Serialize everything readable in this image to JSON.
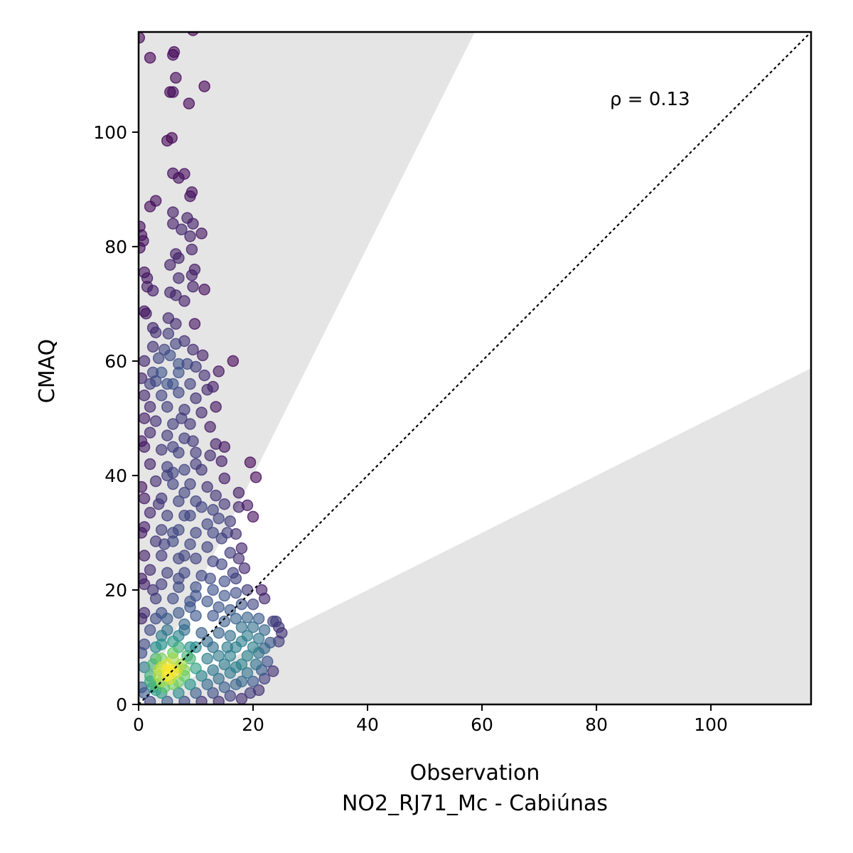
{
  "chart_data": {
    "type": "scatter",
    "title": "",
    "xlabel": "Observation",
    "xlabel_sub": "NO2_RJ71_Mc - Cabiúnas",
    "ylabel": "CMAQ",
    "xlim": [
      0,
      117.5
    ],
    "ylim": [
      0,
      117.5
    ],
    "xticks": [
      0,
      20,
      40,
      60,
      80,
      100
    ],
    "yticks": [
      0,
      20,
      40,
      60,
      80,
      100
    ],
    "grid": false,
    "legend": "none",
    "annotation": "ρ = 0.13",
    "reference_line": {
      "label": "1:1",
      "style": "dotted",
      "color": "#000000"
    },
    "shaded_band": {
      "slopes_outside": [
        0.5,
        2.0
      ],
      "color": "#e5e5e5"
    },
    "colormap": "viridis",
    "colors": {
      "low_density": "#440154",
      "mid_density": "#21918c",
      "high_density": "#fde725",
      "band": "#e5e5e5"
    },
    "points": [
      [
        0.1,
        116.5
      ],
      [
        9.5,
        117.8
      ],
      [
        2,
        113
      ],
      [
        6.2,
        114
      ],
      [
        6,
        113.5
      ],
      [
        6.5,
        109.5
      ],
      [
        11.5,
        108
      ],
      [
        5.5,
        107
      ],
      [
        6,
        107
      ],
      [
        8.8,
        105
      ],
      [
        5,
        98.5
      ],
      [
        5.8,
        99
      ],
      [
        6,
        92.8
      ],
      [
        8,
        92.7
      ],
      [
        7,
        92
      ],
      [
        9.3,
        89.5
      ],
      [
        9,
        88.8
      ],
      [
        2,
        87
      ],
      [
        3,
        88
      ],
      [
        6,
        86
      ],
      [
        8.5,
        85
      ],
      [
        9.5,
        84
      ],
      [
        6,
        84
      ],
      [
        7.5,
        83
      ],
      [
        11,
        82.3
      ],
      [
        9,
        81.8
      ],
      [
        0.2,
        83.5
      ],
      [
        0.5,
        82
      ],
      [
        0.8,
        81
      ],
      [
        0.2,
        79.8
      ],
      [
        6.5,
        78.7
      ],
      [
        9.3,
        79.5
      ],
      [
        7,
        78
      ],
      [
        5.5,
        76.8
      ],
      [
        9.8,
        76
      ],
      [
        9.3,
        75
      ],
      [
        1,
        75.5
      ],
      [
        1.5,
        74.5
      ],
      [
        1.5,
        73
      ],
      [
        7,
        74.5
      ],
      [
        9.5,
        73
      ],
      [
        11.5,
        72.5
      ],
      [
        2.5,
        72.3
      ],
      [
        5.5,
        72
      ],
      [
        6.5,
        71.5
      ],
      [
        8,
        70.5
      ],
      [
        1,
        68.7
      ],
      [
        1.3,
        68.3
      ],
      [
        5.2,
        67.5
      ],
      [
        6.5,
        66.5
      ],
      [
        9.8,
        66.5
      ],
      [
        2.5,
        65.8
      ],
      [
        3,
        65
      ],
      [
        5.2,
        64.8
      ],
      [
        6.5,
        63
      ],
      [
        8,
        63.5
      ],
      [
        9.5,
        62
      ],
      [
        2.5,
        62.5
      ],
      [
        5.5,
        61
      ],
      [
        1,
        60
      ],
      [
        11.2,
        61
      ],
      [
        16.5,
        60
      ],
      [
        7,
        59.5
      ],
      [
        8.5,
        59.5
      ],
      [
        10,
        59
      ],
      [
        14,
        58.2
      ],
      [
        2.5,
        58
      ],
      [
        4,
        58
      ],
      [
        11.5,
        57.5
      ],
      [
        0.5,
        57
      ],
      [
        3,
        56.5
      ],
      [
        6,
        56
      ],
      [
        9,
        56
      ],
      [
        13,
        55.5
      ],
      [
        12,
        55
      ],
      [
        1,
        54
      ],
      [
        4,
        54
      ],
      [
        7,
        54.5
      ],
      [
        10,
        53.5
      ],
      [
        13.5,
        52
      ],
      [
        2,
        52
      ],
      [
        5,
        52
      ],
      [
        8,
        51.5
      ],
      [
        11,
        51
      ],
      [
        1,
        50
      ],
      [
        3,
        49.5
      ],
      [
        6,
        49
      ],
      [
        9,
        49
      ],
      [
        12.5,
        48.5
      ],
      [
        2,
        47.5
      ],
      [
        5,
        47
      ],
      [
        8,
        46.5
      ],
      [
        13.5,
        45.5
      ],
      [
        15,
        45
      ],
      [
        1,
        45
      ],
      [
        4,
        44.5
      ],
      [
        7,
        44
      ],
      [
        10,
        44
      ],
      [
        12.5,
        43.5
      ],
      [
        19.5,
        42.3
      ],
      [
        14.5,
        42.5
      ],
      [
        2,
        42
      ],
      [
        5,
        41.5
      ],
      [
        8,
        41
      ],
      [
        11,
        41
      ],
      [
        20.5,
        39.7
      ],
      [
        15,
        39.5
      ],
      [
        3,
        39
      ],
      [
        6,
        38.5
      ],
      [
        9,
        38.5
      ],
      [
        12,
        38
      ],
      [
        17.5,
        37
      ],
      [
        13.5,
        36.5
      ],
      [
        1,
        36
      ],
      [
        4,
        36
      ],
      [
        7,
        35.5
      ],
      [
        10,
        35.5
      ],
      [
        15,
        35
      ],
      [
        19,
        34.8
      ],
      [
        17.5,
        34.5
      ],
      [
        11,
        34.5
      ],
      [
        13,
        34
      ],
      [
        2,
        33.5
      ],
      [
        5,
        33
      ],
      [
        8,
        33
      ],
      [
        20,
        32.8
      ],
      [
        14,
        32.5
      ],
      [
        16,
        32
      ],
      [
        12,
        31.5
      ],
      [
        1,
        31
      ],
      [
        4,
        30.5
      ],
      [
        7,
        30.5
      ],
      [
        10,
        30
      ],
      [
        13,
        30
      ],
      [
        15.5,
        30
      ],
      [
        17,
        29.8
      ],
      [
        14.5,
        29
      ],
      [
        3,
        28.5
      ],
      [
        6,
        28.5
      ],
      [
        9,
        28
      ],
      [
        12,
        27.5
      ],
      [
        18,
        27.3
      ],
      [
        16,
        26.5
      ],
      [
        17.5,
        25.5
      ],
      [
        1,
        26
      ],
      [
        4,
        26
      ],
      [
        7,
        25.5
      ],
      [
        10,
        25.5
      ],
      [
        13,
        25
      ],
      [
        14.5,
        24.5
      ],
      [
        18.5,
        23.8
      ],
      [
        16.5,
        23
      ],
      [
        2,
        23.5
      ],
      [
        5,
        23
      ],
      [
        8,
        23
      ],
      [
        11,
        22.5
      ],
      [
        12.5,
        22
      ],
      [
        17,
        22
      ],
      [
        15,
        21.5
      ],
      [
        1,
        21
      ],
      [
        4,
        21
      ],
      [
        7,
        20.5
      ],
      [
        10,
        20.5
      ],
      [
        13,
        20
      ],
      [
        21.5,
        20
      ],
      [
        19,
        20
      ],
      [
        22,
        18.5
      ],
      [
        17,
        19.5
      ],
      [
        15,
        19
      ],
      [
        3,
        18.5
      ],
      [
        6,
        18.5
      ],
      [
        9,
        18
      ],
      [
        12,
        18
      ],
      [
        18,
        17.5
      ],
      [
        20,
        17.5
      ],
      [
        14,
        17
      ],
      [
        16,
        16.5
      ],
      [
        1,
        16
      ],
      [
        4,
        16
      ],
      [
        7,
        16
      ],
      [
        10,
        15.5
      ],
      [
        13,
        15.5
      ],
      [
        19,
        15.2
      ],
      [
        21,
        15
      ],
      [
        17,
        15
      ],
      [
        15,
        14.5
      ],
      [
        23.5,
        14.5
      ],
      [
        24,
        14.5
      ],
      [
        24.5,
        13.5
      ],
      [
        25,
        12.5
      ],
      [
        22,
        13
      ],
      [
        20,
        13.5
      ],
      [
        18,
        13.5
      ],
      [
        2,
        13
      ],
      [
        5,
        13
      ],
      [
        8,
        13
      ],
      [
        11,
        12.5
      ],
      [
        14,
        12.5
      ],
      [
        16,
        12
      ],
      [
        19,
        12
      ],
      [
        21,
        11.5
      ],
      [
        23,
        10.8
      ],
      [
        24.5,
        11
      ],
      [
        18,
        11
      ],
      [
        12,
        11
      ],
      [
        1,
        10.5
      ],
      [
        4,
        10.5
      ],
      [
        7,
        10
      ],
      [
        10,
        10
      ],
      [
        13,
        10
      ],
      [
        15.5,
        10
      ],
      [
        17,
        10
      ],
      [
        20,
        10
      ],
      [
        22,
        9.8
      ],
      [
        21,
        9
      ],
      [
        19,
        8.5
      ],
      [
        16,
        8.5
      ],
      [
        14,
        8.5
      ],
      [
        3,
        8
      ],
      [
        6,
        8
      ],
      [
        9,
        8
      ],
      [
        12,
        8
      ],
      [
        22.5,
        7.5
      ],
      [
        18,
        7
      ],
      [
        20.5,
        7
      ],
      [
        15,
        7
      ],
      [
        17,
        6.5
      ],
      [
        1,
        6.5
      ],
      [
        4,
        6.5
      ],
      [
        7,
        6.5
      ],
      [
        10,
        6.3
      ],
      [
        13,
        6
      ],
      [
        23.5,
        5.8
      ],
      [
        21.5,
        6
      ],
      [
        19,
        5.5
      ],
      [
        16,
        5.5
      ],
      [
        2,
        5
      ],
      [
        5,
        5
      ],
      [
        8,
        5
      ],
      [
        11,
        5
      ],
      [
        14,
        4.5
      ],
      [
        22,
        4.5
      ],
      [
        20,
        4
      ],
      [
        18,
        4
      ],
      [
        17,
        3.5
      ],
      [
        3,
        3.5
      ],
      [
        6,
        3.5
      ],
      [
        9,
        3.5
      ],
      [
        12,
        3.5
      ],
      [
        15,
        3
      ],
      [
        21,
        2.5
      ],
      [
        19.5,
        2
      ],
      [
        1,
        2
      ],
      [
        4,
        2
      ],
      [
        7,
        2
      ],
      [
        10,
        2
      ],
      [
        13,
        2
      ],
      [
        16,
        1.5
      ],
      [
        18,
        1
      ],
      [
        2,
        0.5
      ],
      [
        5,
        0.5
      ],
      [
        8,
        0.5
      ],
      [
        11,
        0.5
      ],
      [
        14,
        0.5
      ],
      [
        0.5,
        3
      ],
      [
        0.5,
        9
      ],
      [
        0.5,
        15
      ],
      [
        0.5,
        22
      ],
      [
        0.5,
        30
      ],
      [
        0.5,
        38
      ],
      [
        0.5,
        46
      ],
      [
        2,
        56
      ],
      [
        3.5,
        60.5
      ],
      [
        4.5,
        62
      ],
      [
        5,
        40
      ],
      [
        6,
        45
      ],
      [
        3.5,
        35
      ],
      [
        4.5,
        28
      ],
      [
        2.5,
        20
      ],
      [
        3,
        15
      ],
      [
        4,
        12
      ],
      [
        3,
        10
      ],
      [
        2.5,
        7
      ],
      [
        3.5,
        5
      ],
      [
        4,
        4
      ],
      [
        2.5,
        3
      ],
      [
        3,
        2.5
      ],
      [
        4.5,
        3
      ],
      [
        5.5,
        4.5
      ],
      [
        6.5,
        5.5
      ],
      [
        7.5,
        7
      ],
      [
        8.5,
        8.5
      ],
      [
        5,
        7
      ],
      [
        6,
        9
      ],
      [
        4,
        8
      ],
      [
        3.5,
        6
      ],
      [
        2,
        4
      ],
      [
        5,
        6
      ],
      [
        6,
        6
      ],
      [
        7,
        4
      ],
      [
        8,
        6
      ],
      [
        9,
        10
      ],
      [
        6,
        11
      ],
      [
        7,
        12
      ],
      [
        8,
        14
      ],
      [
        5,
        15
      ],
      [
        9,
        17
      ],
      [
        10,
        19
      ],
      [
        7,
        22
      ],
      [
        8,
        26
      ],
      [
        6,
        30
      ],
      [
        9,
        33
      ],
      [
        8,
        37
      ],
      [
        6,
        40.5
      ],
      [
        10,
        42
      ],
      [
        9.5,
        46
      ],
      [
        7.5,
        50
      ],
      [
        5,
        56
      ],
      [
        7,
        58
      ]
    ]
  }
}
